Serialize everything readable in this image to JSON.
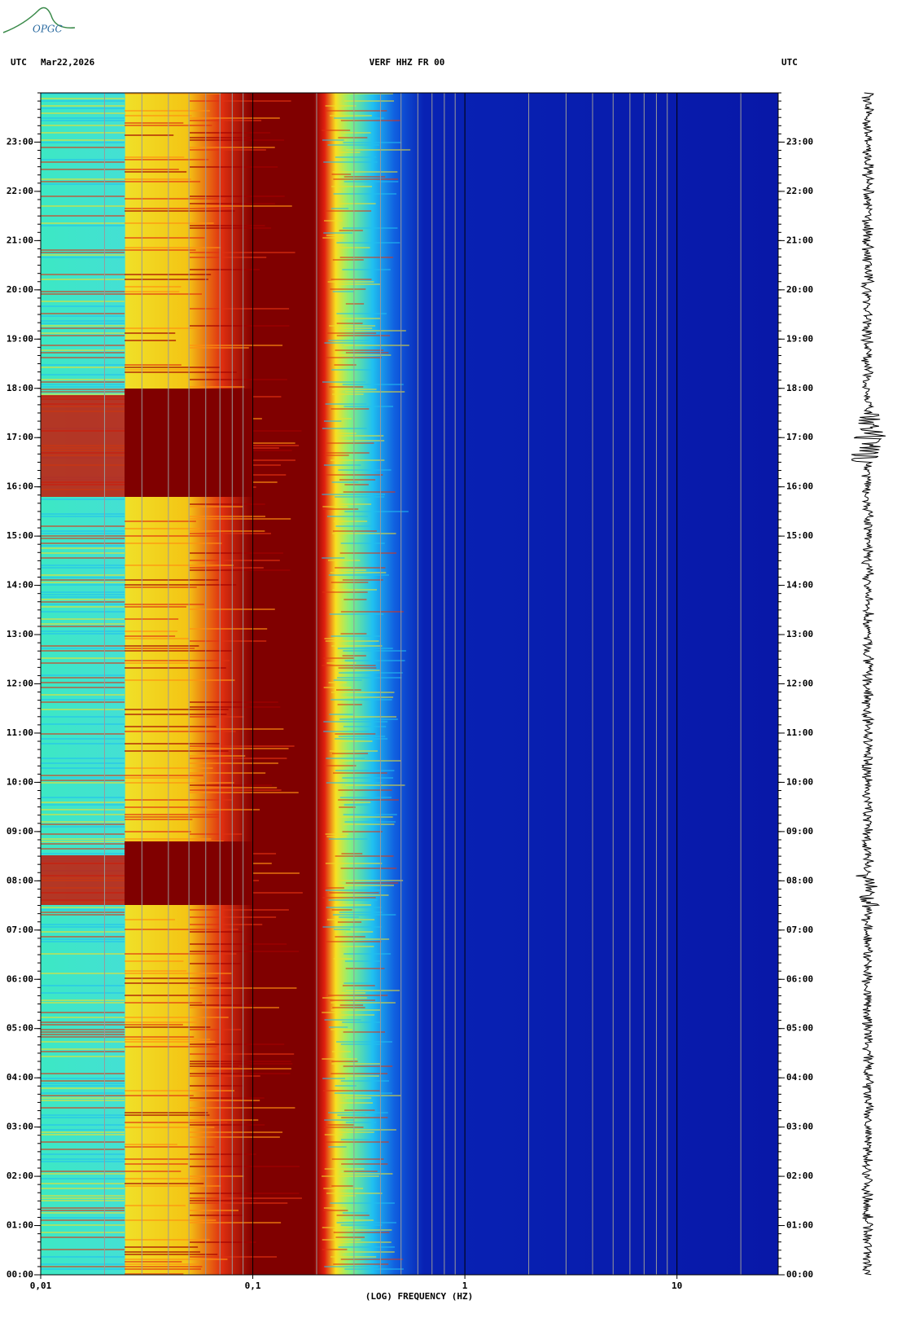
{
  "logo": "OPGC",
  "chart_data": {
    "type": "spectrogram",
    "header_left": [
      "UTC",
      "Mar22,2026"
    ],
    "title": "VERF HHZ FR 00",
    "header_right": "UTC",
    "xlabel": "(LOG) FREQUENCY (HZ)",
    "xscale": "log",
    "xlim": [
      0.01,
      30
    ],
    "xticks": [
      {
        "value": 0.01,
        "label": "0,01"
      },
      {
        "value": 0.1,
        "label": "0,1"
      },
      1,
      10
    ],
    "xminorticks": [
      0.02,
      0.03,
      0.04,
      0.05,
      0.06,
      0.07,
      0.08,
      0.09,
      0.2,
      0.3,
      0.4,
      0.5,
      0.6,
      0.7,
      0.8,
      0.9,
      2,
      3,
      4,
      5,
      6,
      7,
      8,
      9,
      20
    ],
    "ylim": [
      0,
      24
    ],
    "yticks": [
      {
        "value": 0,
        "label": "00:00"
      },
      {
        "value": 1,
        "label": "01:00"
      },
      {
        "value": 2,
        "label": "02:00"
      },
      {
        "value": 3,
        "label": "03:00"
      },
      {
        "value": 4,
        "label": "04:00"
      },
      {
        "value": 5,
        "label": "05:00"
      },
      {
        "value": 6,
        "label": "06:00"
      },
      {
        "value": 7,
        "label": "07:00"
      },
      {
        "value": 8,
        "label": "08:00"
      },
      {
        "value": 9,
        "label": "09:00"
      },
      {
        "value": 10,
        "label": "10:00"
      },
      {
        "value": 11,
        "label": "11:00"
      },
      {
        "value": 12,
        "label": "12:00"
      },
      {
        "value": 13,
        "label": "13:00"
      },
      {
        "value": 14,
        "label": "14:00"
      },
      {
        "value": 15,
        "label": "15:00"
      },
      {
        "value": 16,
        "label": "16:00"
      },
      {
        "value": 17,
        "label": "17:00"
      },
      {
        "value": 18,
        "label": "18:00"
      },
      {
        "value": 19,
        "label": "19:00"
      },
      {
        "value": 20,
        "label": "20:00"
      },
      {
        "value": 21,
        "label": "21:00"
      },
      {
        "value": 22,
        "label": "22:00"
      },
      {
        "value": 23,
        "label": "23:00"
      }
    ]
  }
}
